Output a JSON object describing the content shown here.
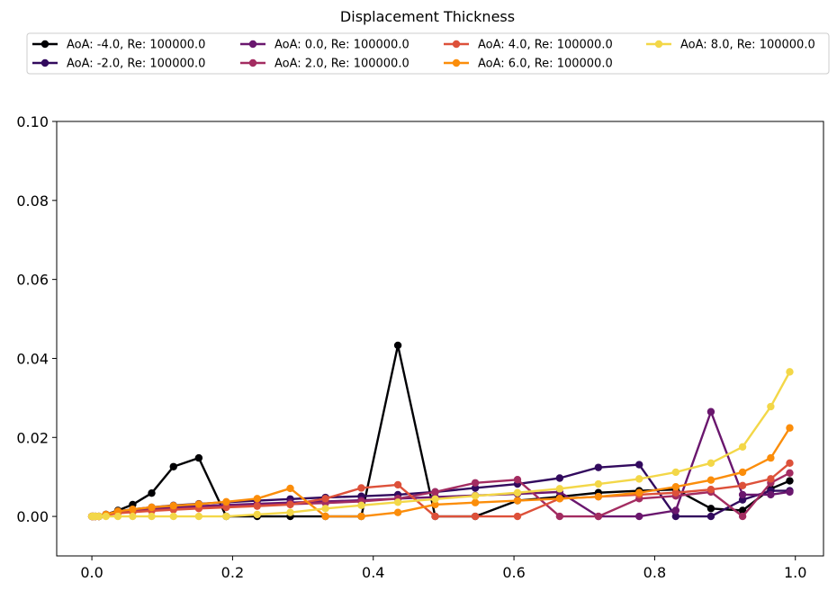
{
  "chart_data": {
    "type": "line",
    "title": "Displacement Thickness",
    "xlabel": "",
    "ylabel": "",
    "xlim": [
      -0.05,
      1.04
    ],
    "ylim": [
      -0.01,
      0.1
    ],
    "xticks": [
      0.0,
      0.2,
      0.4,
      0.6,
      0.8,
      1.0
    ],
    "xtick_labels": [
      "0.0",
      "0.2",
      "0.4",
      "0.6",
      "0.8",
      "1.0"
    ],
    "yticks": [
      0.0,
      0.02,
      0.04,
      0.06,
      0.08,
      0.1
    ],
    "ytick_labels": [
      "0.00",
      "0.02",
      "0.04",
      "0.06",
      "0.08",
      "0.10"
    ],
    "grid": false,
    "legend_position": "top, above plot",
    "series": [
      {
        "name": "AoA: -4.0, Re: 100000.0",
        "color": "#000004",
        "x": [
          0.0,
          0.002,
          0.005,
          0.01,
          0.02,
          0.037,
          0.058,
          0.085,
          0.116,
          0.152,
          0.191,
          0.235,
          0.282,
          0.332,
          0.383,
          0.435,
          0.488,
          0.545,
          0.605,
          0.665,
          0.72,
          0.778,
          0.83,
          0.88,
          0.925,
          0.965,
          0.992
        ],
        "y": [
          0.0,
          0.0,
          0.0,
          0.0,
          0.0005,
          0.0015,
          0.003,
          0.0059,
          0.0126,
          0.0148,
          0.0,
          0.0,
          0.0,
          0.0,
          0.0,
          0.0433,
          0.0,
          0.0,
          0.004,
          0.005,
          0.006,
          0.0065,
          0.0068,
          0.002,
          0.0015,
          0.007,
          0.009
        ]
      },
      {
        "name": "AoA: -2.0, Re: 100000.0",
        "color": "#320a5e",
        "x": [
          0.0,
          0.002,
          0.005,
          0.01,
          0.02,
          0.037,
          0.058,
          0.085,
          0.116,
          0.152,
          0.191,
          0.235,
          0.282,
          0.332,
          0.383,
          0.435,
          0.488,
          0.545,
          0.605,
          0.665,
          0.72,
          0.778,
          0.83,
          0.88,
          0.925,
          0.965,
          0.992
        ],
        "y": [
          0.0,
          0.0,
          0.0,
          0.0,
          0.0005,
          0.0013,
          0.0018,
          0.0023,
          0.0028,
          0.0032,
          0.0036,
          0.004,
          0.0044,
          0.0048,
          0.0051,
          0.0055,
          0.0062,
          0.0072,
          0.0082,
          0.0097,
          0.0124,
          0.0131,
          0.0,
          0.0,
          0.0042,
          0.0065,
          0.0065
        ]
      },
      {
        "name": "AoA: 0.0, Re: 100000.0",
        "color": "#6a176e",
        "x": [
          0.0,
          0.002,
          0.005,
          0.01,
          0.02,
          0.037,
          0.058,
          0.085,
          0.116,
          0.152,
          0.191,
          0.235,
          0.282,
          0.332,
          0.383,
          0.435,
          0.488,
          0.545,
          0.605,
          0.665,
          0.72,
          0.778,
          0.83,
          0.88,
          0.925,
          0.965,
          0.992
        ],
        "y": [
          0.0,
          0.0,
          0.0,
          0.0,
          0.0004,
          0.001,
          0.0015,
          0.0019,
          0.0023,
          0.0026,
          0.0029,
          0.0032,
          0.0035,
          0.0038,
          0.0041,
          0.0045,
          0.0049,
          0.0053,
          0.0057,
          0.0062,
          0.0,
          0.0,
          0.0015,
          0.0265,
          0.0055,
          0.0055,
          0.0062
        ]
      },
      {
        "name": "AoA: 2.0, Re: 100000.0",
        "color": "#a32c61",
        "x": [
          0.0,
          0.002,
          0.005,
          0.01,
          0.02,
          0.037,
          0.058,
          0.085,
          0.116,
          0.152,
          0.191,
          0.235,
          0.282,
          0.332,
          0.383,
          0.435,
          0.488,
          0.545,
          0.605,
          0.665,
          0.72,
          0.778,
          0.83,
          0.88,
          0.925,
          0.965,
          0.992
        ],
        "y": [
          0.0,
          0.0,
          0.0,
          0.0,
          0.0004,
          0.0009,
          0.0013,
          0.0016,
          0.0019,
          0.0022,
          0.0025,
          0.0028,
          0.0031,
          0.0034,
          0.0038,
          0.0045,
          0.0062,
          0.0085,
          0.0093,
          0.0,
          0.0,
          0.0045,
          0.0052,
          0.0062,
          0.0,
          0.0085,
          0.011
        ]
      },
      {
        "name": "AoA: 4.0, Re: 100000.0",
        "color": "#dd513a",
        "x": [
          0.0,
          0.002,
          0.005,
          0.01,
          0.02,
          0.037,
          0.058,
          0.085,
          0.116,
          0.152,
          0.191,
          0.235,
          0.282,
          0.332,
          0.383,
          0.435,
          0.488,
          0.545,
          0.605,
          0.665,
          0.72,
          0.778,
          0.83,
          0.88,
          0.925,
          0.965,
          0.992
        ],
        "y": [
          0.0,
          0.0,
          0.0,
          0.0,
          0.0003,
          0.0008,
          0.0011,
          0.0014,
          0.0017,
          0.002,
          0.0023,
          0.0026,
          0.003,
          0.0045,
          0.0072,
          0.008,
          0.0,
          0.0,
          0.0,
          0.0045,
          0.005,
          0.0055,
          0.006,
          0.0068,
          0.0078,
          0.0095,
          0.0135
        ]
      },
      {
        "name": "AoA: 6.0, Re: 100000.0",
        "color": "#fb8d0a",
        "x": [
          0.0,
          0.002,
          0.005,
          0.01,
          0.02,
          0.037,
          0.058,
          0.085,
          0.116,
          0.152,
          0.191,
          0.235,
          0.282,
          0.332,
          0.383,
          0.435,
          0.488,
          0.545,
          0.605,
          0.665,
          0.72,
          0.778,
          0.83,
          0.88,
          0.925,
          0.965,
          0.992
        ],
        "y": [
          0.0,
          0.0,
          0.0,
          0.0,
          0.0005,
          0.0013,
          0.0018,
          0.0023,
          0.0027,
          0.0031,
          0.0037,
          0.0045,
          0.0071,
          0.0,
          0.0,
          0.001,
          0.003,
          0.0035,
          0.004,
          0.0045,
          0.005,
          0.006,
          0.0075,
          0.0092,
          0.0112,
          0.0148,
          0.0224
        ]
      },
      {
        "name": "AoA: 8.0, Re: 100000.0",
        "color": "#f3d748",
        "x": [
          0.0,
          0.002,
          0.005,
          0.01,
          0.02,
          0.037,
          0.058,
          0.085,
          0.116,
          0.152,
          0.191,
          0.235,
          0.282,
          0.332,
          0.383,
          0.435,
          0.488,
          0.545,
          0.605,
          0.665,
          0.72,
          0.778,
          0.83,
          0.88,
          0.925,
          0.965,
          0.992
        ],
        "y": [
          0.0,
          0.0,
          0.0,
          0.0,
          0.0,
          0.0,
          0.0,
          0.0,
          0.0,
          0.0,
          0.0,
          0.0005,
          0.001,
          0.002,
          0.0028,
          0.0036,
          0.0044,
          0.0052,
          0.006,
          0.007,
          0.0082,
          0.0095,
          0.0112,
          0.0135,
          0.0176,
          0.0278,
          0.0366
        ]
      }
    ]
  }
}
